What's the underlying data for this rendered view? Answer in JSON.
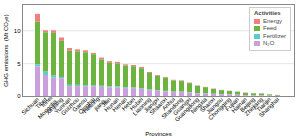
{
  "chart_data": {
    "type": "bar",
    "stacked": true,
    "categories": [
      "Sichuan",
      "Tibet",
      "Inner\nMongolia",
      "Xinjiang",
      "Yunnan",
      "Guizhou",
      "Gansu",
      "Qinghai",
      "Heilong-\njiang",
      "Jilin",
      "Hunan",
      "Henan",
      "Hebei",
      "Hubei",
      "Liaoning",
      "Jiangxi",
      "Shaanxi",
      "Anhui",
      "Shandong",
      "Guangxi",
      "Guangdong",
      "Ningxia",
      "Shanxi",
      "Jiangsu",
      "Chongqing",
      "Fujian",
      "Hainan",
      "Beijing",
      "Zhejiang",
      "Tianjin",
      "Shanghai"
    ],
    "series": [
      {
        "name": "Energy",
        "color": "#f08080",
        "values": [
          1.2,
          0.3,
          0.4,
          0.5,
          0.4,
          0.3,
          0.3,
          0.2,
          0.3,
          0.25,
          0.25,
          0.2,
          0.2,
          0.2,
          0.15,
          0.12,
          0.12,
          0.1,
          0.1,
          0.08,
          0.06,
          0.05,
          0.04,
          0.03,
          0.03,
          0.025,
          0.015,
          0.012,
          0.01,
          0.008,
          0.005
        ]
      },
      {
        "name": "Feed",
        "color": "#6db33f",
        "values": [
          6.5,
          6.0,
          6.5,
          5.5,
          5.2,
          5.1,
          5.0,
          4.7,
          4.0,
          3.6,
          3.5,
          3.3,
          3.2,
          3.0,
          2.5,
          2.2,
          2.0,
          1.7,
          1.6,
          1.4,
          1.1,
          0.95,
          0.75,
          0.62,
          0.52,
          0.45,
          0.35,
          0.3,
          0.28,
          0.18,
          0.12
        ]
      },
      {
        "name": "Fertilizer",
        "color": "#5bcbcb",
        "values": [
          0.3,
          0.5,
          0.3,
          0.2,
          0.2,
          0.2,
          0.15,
          0.15,
          0.15,
          0.15,
          0.15,
          0.12,
          0.12,
          0.12,
          0.1,
          0.08,
          0.08,
          0.07,
          0.07,
          0.06,
          0.05,
          0.04,
          0.04,
          0.03,
          0.03,
          0.025,
          0.02,
          0.015,
          0.015,
          0.01,
          0.006
        ]
      },
      {
        "name": "N₂O",
        "color": "#c9a0dc",
        "values": [
          4.5,
          3.2,
          2.8,
          2.7,
          1.5,
          1.5,
          1.5,
          1.5,
          1.4,
          1.3,
          1.3,
          1.2,
          1.2,
          1.1,
          0.9,
          0.8,
          0.7,
          0.6,
          0.6,
          0.5,
          0.4,
          0.35,
          0.3,
          0.25,
          0.22,
          0.18,
          0.13,
          0.1,
          0.09,
          0.06,
          0.04
        ]
      }
    ],
    "xlabel": "Provinces",
    "ylabel": "GHG emissions  (Mt CO₂e)",
    "legend_title": "Activities",
    "legend": "upper right",
    "ylim": [
      0,
      14
    ],
    "yticks": [
      0,
      5,
      10
    ],
    "grid": true
  }
}
